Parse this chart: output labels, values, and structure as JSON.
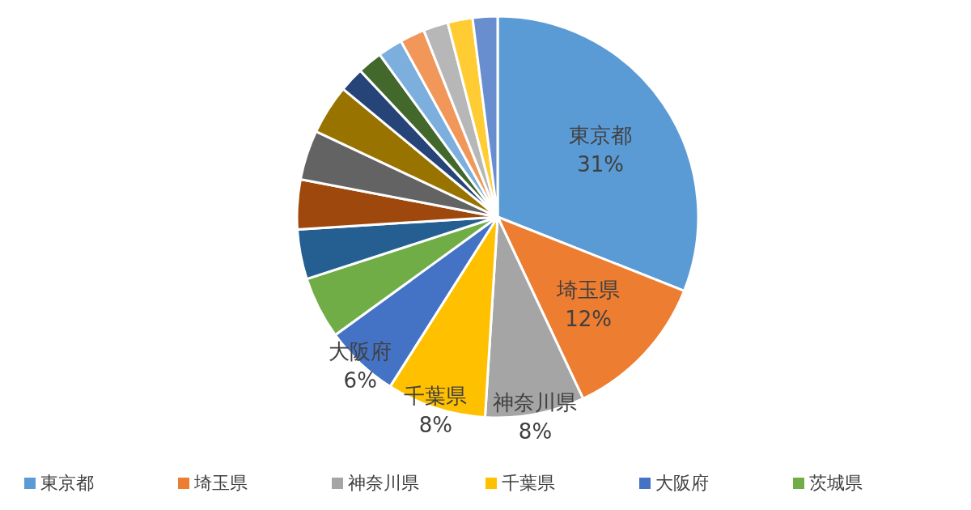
{
  "chart_data": {
    "type": "pie",
    "categories": [
      "東京都",
      "埼玉県",
      "神奈川県",
      "千葉県",
      "大阪府",
      "茨城県",
      null,
      null,
      null,
      null,
      null,
      null,
      null,
      null,
      null,
      null,
      null
    ],
    "values": [
      31,
      12,
      8,
      8,
      6,
      5,
      4,
      4,
      4,
      4,
      2,
      2,
      2,
      2,
      2,
      2,
      2
    ],
    "value_labels": [
      "31%",
      "12%",
      "8%",
      "8%",
      "6%",
      null,
      null,
      null,
      null,
      null,
      null,
      null,
      null,
      null,
      null,
      null,
      null
    ],
    "colors": [
      "#5b9bd5",
      "#ed7d31",
      "#a5a5a5",
      "#ffc000",
      "#4472c4",
      "#70ad47",
      "#255e91",
      "#9e480e",
      "#636363",
      "#997300",
      "#264478",
      "#43682b",
      "#7cafdd",
      "#f1975a",
      "#b7b7b7",
      "#ffcd33",
      "#698ed0"
    ],
    "legend": "bottom"
  }
}
